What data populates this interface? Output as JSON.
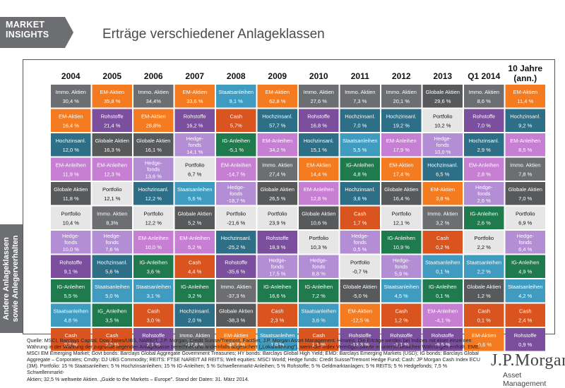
{
  "header": {
    "brand_line1": "MARKET",
    "brand_line2": "INSIGHTS",
    "title": "Erträge verschiedener Anlageklassen"
  },
  "side_label": {
    "line1": "Andere Anlageklassen",
    "line2": "sowie Anlegerverhalten"
  },
  "colors": {
    "Immo. Aktien": "#6d6e71",
    "EM-Aktien": "#f47b20",
    "Rohstoffe": "#7b4f9d",
    "Hochzinsanl.": "#2c6f87",
    "Globale Aktien": "#58595b",
    "EM-Anleihen": "#c77fd4",
    "Portfolio": "#e6e6e6",
    "Hedge-fonds": "#b38ed4",
    "IG-Anleihen": "#1f7a4d",
    "Staatsanleihen": "#3f9bbf",
    "Cash": "#d9541e"
  },
  "chart_data": {
    "type": "table",
    "title": "Erträge verschiedener Anlageklassen",
    "columns": [
      "2004",
      "2005",
      "2006",
      "2007",
      "2008",
      "2009",
      "2010",
      "2011",
      "2012",
      "2013",
      "Q1 2014",
      "10 Jahre (ann.)"
    ],
    "cells": [
      [
        [
          "Immo. Aktien",
          "30,4 %"
        ],
        [
          "EM-Aktien",
          "35,8 %"
        ],
        [
          "Immo. Aktien",
          "34,4%"
        ],
        [
          "EM-Aktien",
          "33,6 %"
        ],
        [
          "Staatsanleihen",
          "9,1 %"
        ],
        [
          "EM-Aktien",
          "62,8 %"
        ],
        [
          "Immo. Aktien",
          "27,6 %"
        ],
        [
          "Immo. Aktien",
          "7,3 %"
        ],
        [
          "Immo. Aktien",
          "20,1 %"
        ],
        [
          "Globale Aktien",
          "29,6 %"
        ],
        [
          "Immo. Aktien",
          "8,6 %"
        ],
        [
          "EM-Aktien",
          "11,4 %"
        ]
      ],
      [
        [
          "EM-Aktien",
          "16,4 %"
        ],
        [
          "Rohstoffe",
          "21,4 %"
        ],
        [
          "EM-Aktien",
          "28,8%"
        ],
        [
          "Rohstoffe",
          "16,2 %"
        ],
        [
          "Cash",
          "5,7%"
        ],
        [
          "Hochzinsanl.",
          "57,7 %"
        ],
        [
          "Rohstoffe",
          "16,8 %"
        ],
        [
          "Hochzinsanl.",
          "7,0 %"
        ],
        [
          "Hochzinsanl.",
          "19,2 %"
        ],
        [
          "Portfolio",
          "10,2 %"
        ],
        [
          "Rohstoffe",
          "7,0 %"
        ],
        [
          "Hochzinsanl.",
          "9,2 %"
        ]
      ],
      [
        [
          "Hochzinsanl.",
          "12,0 %"
        ],
        [
          "Globale Aktien",
          "16,3 %"
        ],
        [
          "Globale Aktien",
          "16,1 %"
        ],
        [
          "Hedge-fonds",
          "14,1 %"
        ],
        [
          "IG-Anleihen",
          "-5,1 %"
        ],
        [
          "EM-Anleihen",
          "34,2 %"
        ],
        [
          "Hochzinsanl.",
          "15,1 %"
        ],
        [
          "Staatsanleihen",
          "5,5 %"
        ],
        [
          "EM-Anleihen",
          "17,9 %"
        ],
        [
          "Hedge-fonds",
          "10,0 %"
        ],
        [
          "Hochzinsanl.",
          "2,9 %"
        ],
        [
          "EM-Anleihen",
          "8,5 %"
        ]
      ],
      [
        [
          "EM-Anleihen",
          "11,9 %"
        ],
        [
          "EM-Anleihen",
          "12,3 %"
        ],
        [
          "Hedge-fonds",
          "13,6 %"
        ],
        [
          "Portfolio",
          "6,7 %"
        ],
        [
          "EM-Anleihen",
          "-14,7 %"
        ],
        [
          "Immo. Aktien",
          "27,4 %"
        ],
        [
          "EM-Aktien",
          "14,4 %"
        ],
        [
          "IG-Anleihen",
          "4,8 %"
        ],
        [
          "EM-Aktien",
          "17,4 %"
        ],
        [
          "Hochzinsanl.",
          "6,5 %"
        ],
        [
          "EM-Anleihen",
          "2,8 %"
        ],
        [
          "Immo. Aktien",
          "7,8 %"
        ]
      ],
      [
        [
          "Globale Aktien",
          "11,8 %"
        ],
        [
          "Portfolio",
          "12,1 %"
        ],
        [
          "Hochzinsanl.",
          "12,2 %"
        ],
        [
          "Staatsanleihen",
          "5,6 %"
        ],
        [
          "Hedge-fonds",
          "-18,7 %"
        ],
        [
          "Globale Aktien",
          "26,5 %"
        ],
        [
          "EM-Anleihen",
          "12,8 %"
        ],
        [
          "Hochzinsanl.",
          "3,6 %"
        ],
        [
          "Globale Aktien",
          "16,4 %"
        ],
        [
          "EM-Aktien",
          "3,8 %"
        ],
        [
          "Hedge-fonds",
          "2,6 %"
        ],
        [
          "Globale Aktien",
          "7,0 %"
        ]
      ],
      [
        [
          "Portfolio",
          "10,4 %"
        ],
        [
          "Immo. Aktien",
          "8,3%"
        ],
        [
          "Portfolio",
          "12,2 %"
        ],
        [
          "Globale Aktien",
          "5,2 %"
        ],
        [
          "Portfolio",
          "-21,6 %"
        ],
        [
          "Portfolio",
          "23,9 %"
        ],
        [
          "Globale Aktien",
          "10,6 %"
        ],
        [
          "Cash",
          "1,7 %"
        ],
        [
          "Portfolio",
          "12,1 %"
        ],
        [
          "Immo. Aktien",
          "3,2 %"
        ],
        [
          "IG-Anleihen",
          "2,6 %"
        ],
        [
          "Portfolio",
          "6,9 %"
        ]
      ],
      [
        [
          "Hedge-fonds",
          "10,0 %"
        ],
        [
          "Hedge-fonds",
          "7,6 %"
        ],
        [
          "EM-Anleihen",
          "10,0 %"
        ],
        [
          "EM-Anleihen",
          "5,2 %"
        ],
        [
          "Hochzinsanl.",
          "-25,2 %"
        ],
        [
          "Rohstoffe",
          "18,9 %"
        ],
        [
          "Portfolio",
          "10,3 %"
        ],
        [
          "Hedge-fonds",
          "0,5 %"
        ],
        [
          "IG-Anleihen",
          "10,9 %"
        ],
        [
          "Cash",
          "0,2 %"
        ],
        [
          "Portfolio",
          "2,2 %"
        ],
        [
          "Hedge-fonds",
          "6,4 %"
        ]
      ],
      [
        [
          "Rohstoffe",
          "9,1 %"
        ],
        [
          "Hochzinsanl.",
          "5,6 %"
        ],
        [
          "IG-Anleihen",
          "3,6 %"
        ],
        [
          "Cash",
          "4,4 %"
        ],
        [
          "Rohstoffe",
          "-35,6 %"
        ],
        [
          "Hedge-fonds",
          "17,5 %"
        ],
        [
          "Hedge-fonds",
          "8,8 %"
        ],
        [
          "Portfolio",
          "-0,7 %"
        ],
        [
          "Hedge-fonds",
          "5,9 %"
        ],
        [
          "Staatsanleihen",
          "0,1 %"
        ],
        [
          "Staatsanleihen",
          "2,2 %"
        ],
        [
          "IG-Anleihen",
          "4,9 %"
        ]
      ],
      [
        [
          "IG-Anleihen",
          "5,5 %"
        ],
        [
          "Staatsanleihen",
          "5,0 %"
        ],
        [
          "Staatsanleihen",
          "3,1 %"
        ],
        [
          "IG-Anleihen",
          "3,2 %"
        ],
        [
          "Immo. Aktien",
          "-37,3 %"
        ],
        [
          "IG-Anleihen",
          "16,6 %"
        ],
        [
          "IG-Anleihen",
          "7,2 %"
        ],
        [
          "Globale Aktien",
          "-5,0 %"
        ],
        [
          "Staatsanleihen",
          "4,5 %"
        ],
        [
          "IG-Anleihen",
          "0,1 %"
        ],
        [
          "Globale Aktien",
          "1,2 %"
        ],
        [
          "Staatsanleihen",
          "4,2 %"
        ]
      ],
      [
        [
          "Staatsanleihen",
          "4,8 %"
        ],
        [
          "IG_Anleihen",
          "3,5 %"
        ],
        [
          "Cash",
          "3,0 %"
        ],
        [
          "Hochzinsanl.",
          "2,0 %"
        ],
        [
          "Globale Aktien",
          "-38,3 %"
        ],
        [
          "Cash",
          "2,3 %"
        ],
        [
          "Staatsanleihen",
          "3,6 %"
        ],
        [
          "EM-Aktien",
          "-12,5 %"
        ],
        [
          "Cash",
          "1,2 %"
        ],
        [
          "EM-Anleihen",
          "-4,1 %"
        ],
        [
          "Cash",
          "0,1 %"
        ],
        [
          "Cash",
          "2,4 %"
        ]
      ],
      [
        [
          "Cash",
          "2,2 %"
        ],
        [
          "Cash",
          "2,2 %"
        ],
        [
          "Rohstoffe",
          "2,1 %"
        ],
        [
          "Immo. Aktien",
          "-17,8 %"
        ],
        [
          "EM-Aktien",
          "-45,7 %"
        ],
        [
          "Staatsanleihen",
          "1,0 %"
        ],
        [
          "Cash",
          "1,1 %"
        ],
        [
          "Rohstoffe",
          "-13,3 %"
        ],
        [
          "Rohstoffe",
          "-1,1 %"
        ],
        [
          "Rohstoffe",
          "-9,5 %"
        ],
        [
          "EM-Aktien",
          "-0,6 %"
        ],
        [
          "Rohstoffe",
          "0,9 %"
        ]
      ]
    ]
  },
  "footnote": [
    "Quelle: MSCI, Barclays Capital, Dow Jones/UBS, NAREIT, J.P. Morgan, Credit Suisse/Tremont, FactSet, J.P. Morgan Asset Management. Hinweis: Die Erträge werden bei Indizes mit einer einzelnen",
    "Währung in der Währung der zugrunde liegenden Anlageklasse berechnet und andernfalls abgesichert („Lokalwährung\"), wenn der Index Vermögenswerte in unterschiedlichen Währungen enthält. EME:",
    "MSCI EM Emerging Market; Govt bonds: Barclays Global Aggregate Government Treasuries; HY bonds: Barclays Global High Yield; EMD: Barclays Emerging Markets (USD); IG bonds: Barclays Global",
    "Aggregate – Corporates; Cmdty: DJ UBS Commodity; REITS: FTSE NAREIT All REITS; Welt equities: MSCI World; Hedge funds: Credit Suisse/Tremont Hedge Fund; Cash: JP Morgan Cash Index ECU",
    "(3M). Portfolio: 15 % Staatsanleihen; 5 % Hochzinsanleihen; 15 % IG-Anleihen; 5 % Schwellenmarkt-Anleihen; 5 % Rohstoffe; 5 % Geldmarktanlagen; 5 % REITS; 5 % Hedgefonds; 7,5 % Schwellenmarkt-",
    "Aktien; 32,5 % weltweite Aktien. „Guide to the Markets – Europe\". Stand der Daten: 31. März 2014."
  ],
  "logo": {
    "name": "J.P.Morgan",
    "sub": "Asset Management"
  }
}
